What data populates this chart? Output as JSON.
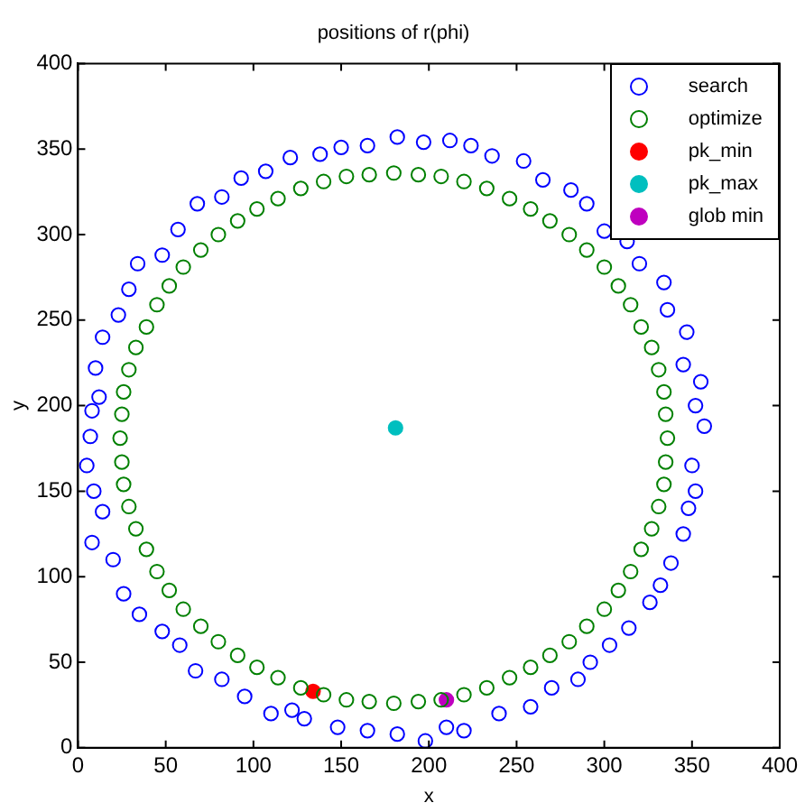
{
  "chart_data": {
    "type": "scatter",
    "title": "positions of r(phi)",
    "xlabel": "x",
    "ylabel": "y",
    "xlim": [
      0,
      400
    ],
    "ylim": [
      0,
      400
    ],
    "xticks": [
      0,
      50,
      100,
      150,
      200,
      250,
      300,
      350,
      400
    ],
    "yticks": [
      0,
      50,
      100,
      150,
      200,
      250,
      300,
      350,
      400
    ],
    "grid": false,
    "legend": "top right",
    "marker": "circle",
    "series": [
      {
        "name": "search",
        "color": "#0000ff",
        "x": [
          357,
          352,
          355,
          345,
          347,
          336,
          334,
          320,
          313,
          300,
          290,
          281,
          265,
          254,
          236,
          224,
          212,
          197,
          182,
          165,
          150,
          138,
          121,
          107,
          93,
          82,
          68,
          57,
          48,
          34,
          29,
          23,
          14,
          10,
          12,
          8,
          7,
          5,
          9,
          14,
          8,
          20,
          26,
          35,
          48,
          58,
          67,
          82,
          95,
          110,
          122,
          129,
          148,
          165,
          182,
          198,
          210,
          220,
          240,
          258,
          270,
          285,
          292,
          303,
          314,
          326,
          332,
          338,
          345,
          348,
          352,
          350
        ],
        "values": [
          188,
          200,
          214,
          224,
          243,
          256,
          272,
          283,
          296,
          302,
          318,
          326,
          332,
          343,
          346,
          352,
          355,
          354,
          357,
          352,
          351,
          347,
          345,
          337,
          333,
          322,
          318,
          303,
          288,
          283,
          268,
          253,
          240,
          222,
          205,
          197,
          182,
          165,
          150,
          138,
          120,
          110,
          90,
          78,
          68,
          60,
          45,
          40,
          30,
          20,
          22,
          17,
          12,
          10,
          8,
          4,
          12,
          10,
          20,
          24,
          35,
          40,
          50,
          60,
          70,
          85,
          95,
          108,
          125,
          140,
          150,
          165
        ]
      },
      {
        "name": "optimize",
        "color": "#008000",
        "x": [
          336,
          335,
          334,
          331,
          327,
          321,
          315,
          308,
          300,
          290,
          280,
          269,
          258,
          246,
          233,
          220,
          207,
          194,
          180,
          166,
          153,
          140,
          127,
          114,
          102,
          91,
          80,
          70,
          60,
          52,
          45,
          39,
          33,
          29,
          26,
          25,
          24,
          25,
          26,
          29,
          33,
          39,
          45,
          52,
          60,
          70,
          80,
          91,
          102,
          114,
          127,
          140,
          153,
          166,
          180,
          194,
          207,
          220,
          233,
          246,
          258,
          269,
          280,
          290,
          300,
          308,
          315,
          321,
          327,
          331,
          334,
          335
        ],
        "values": [
          181,
          195,
          208,
          221,
          234,
          246,
          259,
          270,
          281,
          291,
          300,
          308,
          315,
          321,
          327,
          331,
          334,
          335,
          336,
          335,
          334,
          331,
          327,
          321,
          315,
          308,
          300,
          291,
          281,
          270,
          259,
          246,
          234,
          221,
          208,
          195,
          181,
          167,
          154,
          141,
          128,
          116,
          103,
          92,
          81,
          71,
          62,
          54,
          47,
          41,
          35,
          31,
          28,
          27,
          26,
          27,
          28,
          31,
          35,
          41,
          47,
          54,
          62,
          71,
          81,
          92,
          103,
          116,
          128,
          141,
          154,
          167
        ]
      },
      {
        "name": "pk_min",
        "color": "#ff0000",
        "x": [
          134
        ],
        "values": [
          33
        ]
      },
      {
        "name": "pk_max",
        "color": "#00bfbf",
        "x": [
          181
        ],
        "values": [
          187
        ]
      },
      {
        "name": "glob min",
        "color": "#bf00bf",
        "x": [
          210
        ],
        "values": [
          28
        ]
      }
    ]
  }
}
